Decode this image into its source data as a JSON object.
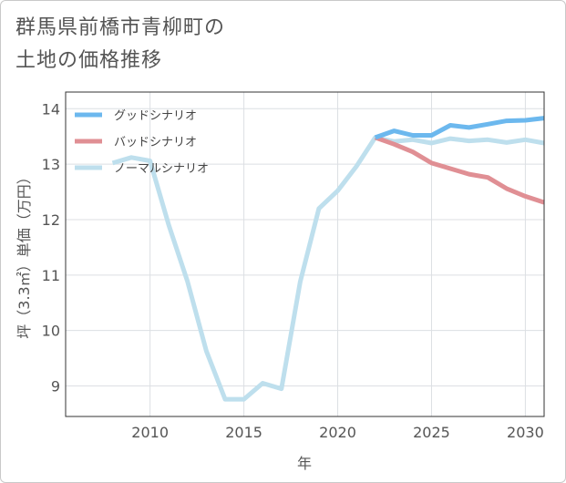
{
  "title_lines": [
    "群馬県前橋市青柳町の",
    "土地の価格推移"
  ],
  "chart_data": {
    "type": "line",
    "title": "群馬県前橋市青柳町の土地の価格推移",
    "xlabel": "年",
    "ylabel": "坪（3.3㎡）単価（万円）",
    "xlim": [
      2005.5,
      2031
    ],
    "ylim": [
      8.45,
      14.3
    ],
    "xticks": [
      2010,
      2015,
      2020,
      2025,
      2030
    ],
    "yticks": [
      9,
      10,
      11,
      12,
      13,
      14
    ],
    "grid": true,
    "legend_position": "top-left",
    "series": [
      {
        "name": "グッドシナリオ",
        "color": "#6cb8ee",
        "x": [
          2022,
          2023,
          2024,
          2025,
          2026,
          2027,
          2028,
          2029,
          2030,
          2031
        ],
        "y": [
          13.48,
          13.6,
          13.52,
          13.52,
          13.7,
          13.66,
          13.72,
          13.78,
          13.79,
          13.83
        ]
      },
      {
        "name": "バッドシナリオ",
        "color": "#e08f94",
        "x": [
          2022,
          2023,
          2024,
          2025,
          2026,
          2027,
          2028,
          2029,
          2030,
          2031
        ],
        "y": [
          13.48,
          13.36,
          13.22,
          13.02,
          12.92,
          12.82,
          12.76,
          12.56,
          12.42,
          12.31
        ]
      },
      {
        "name": "ノーマルシナリオ",
        "color": "#bedfed",
        "x": [
          2008,
          2009,
          2010,
          2011,
          2012,
          2013,
          2014,
          2015,
          2016,
          2017,
          2018,
          2019,
          2020,
          2021,
          2022,
          2023,
          2024,
          2025,
          2026,
          2027,
          2028,
          2029,
          2030,
          2031
        ],
        "y": [
          13.02,
          13.12,
          13.06,
          11.9,
          10.88,
          9.63,
          8.76,
          8.76,
          9.05,
          8.95,
          10.88,
          12.2,
          12.52,
          12.96,
          13.48,
          13.41,
          13.44,
          13.38,
          13.46,
          13.42,
          13.44,
          13.39,
          13.44,
          13.38
        ]
      }
    ]
  }
}
